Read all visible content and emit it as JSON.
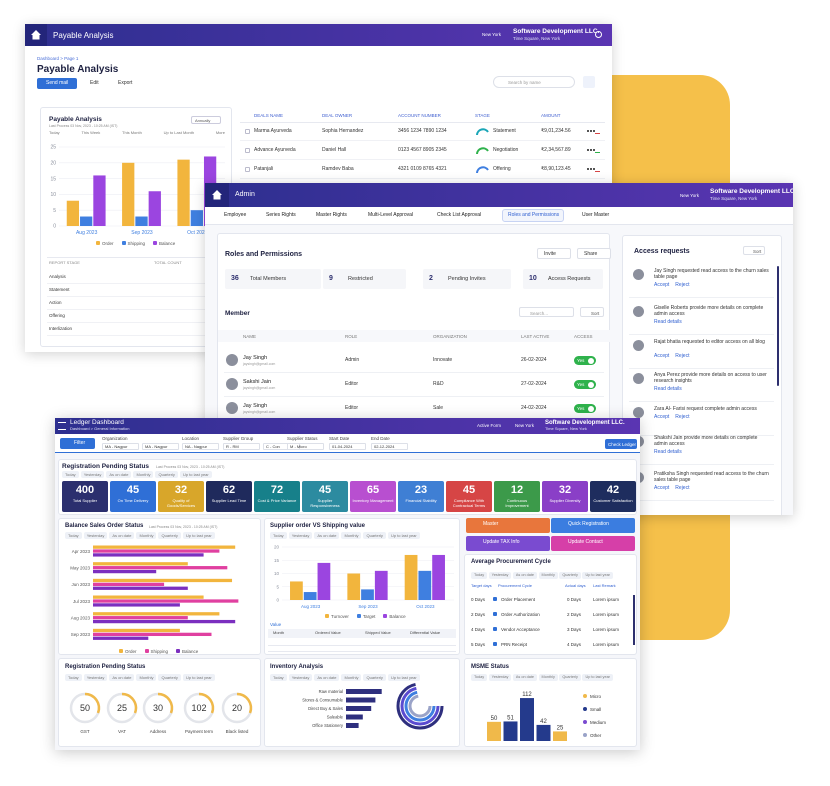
{
  "payable_window": {
    "header": {
      "title": "Payable Analysis",
      "location": "New York",
      "company": "Software Development LLC.",
      "address": "Time Square, New York"
    },
    "breadcrumb": "Dashboard > Page 1",
    "heading": "Payable Analysis",
    "buttons": [
      "Send mail",
      "Edit",
      "Export"
    ],
    "search": "Search by name",
    "card": {
      "title": "Payable Analysis",
      "subtitle": "Last Process 03 Nov, 2023 - 10:25 AM (IST)",
      "period": "Annually",
      "tabs": [
        "Today",
        "This Week",
        "This Month",
        "Up to Last Month",
        "More"
      ],
      "chart_data": {
        "type": "bar",
        "categories": [
          "Aug 2023",
          "Sep 2023",
          "Oct 2023"
        ],
        "series": [
          {
            "name": "Order",
            "color": "#f2b53d",
            "values": [
              8,
              20,
              21
            ]
          },
          {
            "name": "Shipping",
            "color": "#3f7fe0",
            "values": [
              3,
              3,
              5
            ]
          },
          {
            "name": "Balance",
            "color": "#9b45e0",
            "values": [
              16,
              11,
              22
            ]
          }
        ],
        "ylim": [
          0,
          25
        ],
        "yticks": [
          0,
          5,
          10,
          15,
          20,
          25
        ]
      },
      "stage_table": {
        "headers": [
          "REPORT STAGE",
          "TOTAL COUNT"
        ],
        "rows": [
          "Analysis",
          "Statement",
          "Action",
          "Offering",
          "Interlization"
        ]
      }
    },
    "deals": {
      "headers": [
        "DEALS NAME",
        "DEAL OWNER",
        "ACCOUNT NUMBER",
        "STAGE",
        "AMOUNT"
      ],
      "rows": [
        {
          "name": "Marma Ayurveda",
          "owner": "Sophia Hernandez",
          "account": "3456 1234 7890 1234",
          "stage": "Statement",
          "stage_color": "#1aa6b7",
          "amount": "₹9,01,234.56"
        },
        {
          "name": "Advance Ayurveda",
          "owner": "Daniel Hall",
          "account": "0123 4567 8905 2345",
          "stage": "Negotiation",
          "stage_color": "#2fb24c",
          "amount": "₹2,34,567.89"
        },
        {
          "name": "Patanjali",
          "owner": "Ramdev Baba",
          "account": "4321 0109 8765 4321",
          "stage": "Offering",
          "stage_color": "#3f7fe0",
          "amount": "₹8,90,123.45"
        }
      ]
    }
  },
  "admin_window": {
    "header": {
      "title": "Admin",
      "location": "New York",
      "company": "Software Development LLC.",
      "address": "Time Square, New York"
    },
    "tabs": [
      "Employee",
      "Series Rights",
      "Master Rights",
      "Multi-Level Approval",
      "Check List Approval",
      "Roles and Permissions",
      "User Master"
    ],
    "active_tab": 5,
    "roles": {
      "title": "Roles and Permissions",
      "buttons": [
        "Invite",
        "Share"
      ],
      "stats": [
        {
          "value": 36,
          "label": "Total Members"
        },
        {
          "value": 9,
          "label": "Restricted"
        },
        {
          "value": 2,
          "label": "Pending Invites"
        },
        {
          "value": 10,
          "label": "Access Requests"
        }
      ],
      "member_title": "Member",
      "search": "Search...",
      "sort": "Sort",
      "headers": [
        "NAME",
        "ROLE",
        "ORGANIZATION",
        "LAST ACTIVE",
        "ACCESS"
      ],
      "members": [
        {
          "name": "Jay Singh",
          "email": "jaysingh@gmail.com",
          "role": "Admin",
          "org": "Innovate",
          "last_active": "26-02-2024",
          "access": "Yes"
        },
        {
          "name": "Sakshi Jain",
          "email": "jaysingh@gmail.com",
          "role": "Editor",
          "org": "R&D",
          "last_active": "27-02-2024",
          "access": "Yes"
        },
        {
          "name": "Jay Singh",
          "email": "jaysingh@gmail.com",
          "role": "Editor",
          "org": "Sale",
          "last_active": "24-02-2024",
          "access": "Yes"
        }
      ]
    },
    "access": {
      "title": "Access requests",
      "sort": "Sort",
      "requests": [
        {
          "text": "Jay Singh requested read access to the churn sales table page",
          "actions": [
            "Accept",
            "Reject"
          ]
        },
        {
          "text": "Giselle Roberts provide more details on complete admin access",
          "actions": [
            "Read details"
          ]
        },
        {
          "text": "Rajat bhatia requested to editor access on all blog",
          "actions": [
            "Accept",
            "Reject"
          ]
        },
        {
          "text": "Anya Perez provide more details on access to user research insights",
          "actions": [
            "Read details"
          ]
        },
        {
          "text": "Zara Al- Farisi request complete admin access",
          "actions": [
            "Accept",
            "Reject"
          ]
        },
        {
          "text": "Shakshi Jain provide more details on complete admin access",
          "actions": [
            "Read details"
          ]
        },
        {
          "text": "Pratiksha Singh requested read access to the churn sales table page",
          "actions": [
            "Accept",
            "Reject"
          ]
        }
      ]
    }
  },
  "ledger_window": {
    "header": {
      "title": "Ledger Dashboard",
      "breadcrumb": "Dashboard > General Information",
      "form": "Active Form",
      "location": "New York",
      "company": "Software Development LLC.",
      "address": "Time Square, New York"
    },
    "filter_button": "Filter",
    "filters": [
      {
        "label": "Organization",
        "values": [
          "MA - Nagpur",
          "MA - Nagpur"
        ]
      },
      {
        "label": "Location",
        "values": [
          "NA - Nagpur"
        ]
      },
      {
        "label": "Supplier Group",
        "values": [
          "R - RM",
          "C - Con"
        ]
      },
      {
        "label": "Supplier Status",
        "values": [
          "M - Micro"
        ]
      },
      {
        "label": "Start Date",
        "values": [
          "01-04-2024"
        ]
      },
      {
        "label": "End Date",
        "values": [
          "02-12-2024"
        ]
      }
    ],
    "check_button": "Check Ledger",
    "subtitle": "Last Process 03 Nov, 2023 - 10:25 AM (IST)",
    "tabs": [
      "Today",
      "Yesterday",
      "As on date",
      "Monthly",
      "Quarterly",
      "Up to last year"
    ],
    "registration": {
      "title": "Registration Pending Status",
      "tiles": [
        {
          "value": 400,
          "label": "Total Supplier",
          "color": "#2b2f6e"
        },
        {
          "value": 45,
          "label": "On Time Delivery",
          "color": "#2f6fd6"
        },
        {
          "value": 32,
          "label": "Quality of Goods/Services",
          "color": "#d8a62a"
        },
        {
          "value": 62,
          "label": "Supplier Lead Time",
          "color": "#1f2a5c"
        },
        {
          "value": 72,
          "label": "Cost & Price Variance",
          "color": "#17808a"
        },
        {
          "value": 45,
          "label": "Supplier Responsiveness",
          "color": "#2c8ba0"
        },
        {
          "value": 65,
          "label": "Inventory Management",
          "color": "#b84fd0"
        },
        {
          "value": 23,
          "label": "Financial Stability",
          "color": "#3f7fd4"
        },
        {
          "value": 45,
          "label": "Compliance With Contractual Terms",
          "color": "#d64545"
        },
        {
          "value": 12,
          "label": "Continuous Improvement",
          "color": "#3c9a4a"
        },
        {
          "value": 32,
          "label": "Supplier Diversity",
          "color": "#8a3fc7"
        },
        {
          "value": 42,
          "label": "Customer Satisfaction",
          "color": "#1e2d5e"
        }
      ]
    },
    "balance_sales": {
      "title": "Balance Sales Order Status",
      "chart_data": {
        "type": "hbar",
        "categories": [
          "Apr 2023",
          "May 2023",
          "Jun 2023",
          "Jul 2023",
          "Aug 2023",
          "Sep 2023"
        ],
        "series": [
          {
            "name": "Order",
            "color": "#f2b53d",
            "values": [
              90,
              60,
              88,
              70,
              80,
              55
            ]
          },
          {
            "name": "Shipping",
            "color": "#e040a0",
            "values": [
              80,
              85,
              45,
              92,
              60,
              75
            ]
          },
          {
            "name": "Balance",
            "color": "#7b2fbf",
            "values": [
              70,
              40,
              60,
              55,
              90,
              35
            ]
          }
        ],
        "xlim": [
          0,
          100
        ]
      }
    },
    "supplier_order": {
      "title": "Supplier order VS Shipping value",
      "chart_data": {
        "type": "bar",
        "categories": [
          "Aug 2023",
          "Sep 2023",
          "Oct 2023"
        ],
        "series": [
          {
            "name": "Turnover",
            "color": "#f2b53d",
            "values": [
              7,
              10,
              17
            ]
          },
          {
            "name": "Target",
            "color": "#3f7fe0",
            "values": [
              3,
              4,
              11
            ]
          },
          {
            "name": "Balance",
            "color": "#9b45e0",
            "values": [
              14,
              11,
              17
            ]
          }
        ],
        "ylim": [
          0,
          20
        ],
        "yticks": [
          0,
          5,
          10,
          15,
          20
        ]
      },
      "table_title": "Value",
      "table_headers": [
        "Month",
        "Ordered Value",
        "Shipped Value",
        "Differential Value"
      ]
    },
    "quick_buttons": [
      {
        "label": "Master",
        "color": "#e8763c"
      },
      {
        "label": "Quick Registration",
        "color": "#3b7de0"
      },
      {
        "label": "Update TAX Info",
        "color": "#7a4bd0"
      },
      {
        "label": "Update Contact",
        "color": "#d63fa8"
      }
    ],
    "procurement": {
      "title": "Average Procurement Cycle",
      "headers": [
        "Target days",
        "Procurement Cycle",
        "Actual days",
        "Last Remark"
      ],
      "rows": [
        {
          "target": "0 Days",
          "stage": "Order Placement",
          "actual": "0 Days",
          "remark": "Lorem ipsum"
        },
        {
          "target": "2 Days",
          "stage": "Order Authorization",
          "actual": "2 Days",
          "remark": "Lorem ipsum"
        },
        {
          "target": "4 Days",
          "stage": "Vendor Acceptance",
          "actual": "3 Days",
          "remark": "Lorem ipsum"
        },
        {
          "target": "5 Days",
          "stage": "PRN Receipt",
          "actual": "4 Days",
          "remark": "Lorem ipsum"
        }
      ]
    },
    "pending_status": {
      "title": "Registration Pending Status",
      "gauges": [
        {
          "value": 50,
          "label": "GST"
        },
        {
          "value": 25,
          "label": "VAT"
        },
        {
          "value": 30,
          "label": "Address"
        },
        {
          "value": 102,
          "label": "Payment term"
        },
        {
          "value": 20,
          "label": "Black listed"
        }
      ]
    },
    "inventory": {
      "title": "Inventory Analysis",
      "chart_data": {
        "type": "hbar",
        "categories": [
          "Raw material",
          "Stores & Consumable",
          "Direct Buy & Sales",
          "Saleable",
          "Office Stationery"
        ],
        "values": [
          85,
          70,
          60,
          40,
          30
        ],
        "color": "#2e2f7e",
        "xlim": [
          0,
          100
        ]
      }
    },
    "msme": {
      "title": "MSME Status",
      "chart_data": {
        "type": "bar",
        "values": [
          50,
          51,
          112,
          42,
          25
        ],
        "colors": [
          "#f0b94a",
          "#243a8c",
          "#243a8c",
          "#243a8c",
          "#f0b94a"
        ],
        "ylim": [
          0,
          120
        ]
      },
      "legend": [
        "Micro",
        "Small",
        "Medium",
        "Other"
      ]
    }
  }
}
